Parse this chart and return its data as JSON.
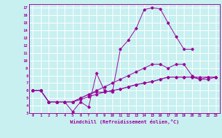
{
  "xlabel": "Windchill (Refroidissement éolien,°C)",
  "bg_color": "#c8f0f0",
  "grid_color": "#ffffff",
  "line_color": "#990099",
  "xlim": [
    -0.5,
    23.5
  ],
  "ylim": [
    3,
    17.5
  ],
  "xticks": [
    0,
    1,
    2,
    3,
    4,
    5,
    6,
    7,
    8,
    9,
    10,
    11,
    12,
    13,
    14,
    15,
    16,
    17,
    18,
    19,
    20,
    21,
    22,
    23
  ],
  "yticks": [
    3,
    4,
    5,
    6,
    7,
    8,
    9,
    10,
    11,
    12,
    13,
    14,
    15,
    16,
    17
  ],
  "series": [
    [
      6.0,
      6.0,
      4.5,
      4.5,
      4.5,
      3.2,
      4.5,
      3.8,
      8.3,
      6.0,
      5.8,
      11.5,
      12.7,
      14.3,
      16.8,
      17.0,
      16.9,
      15.0,
      13.2,
      11.5,
      11.5,
      null,
      null,
      null
    ],
    [
      6.0,
      6.0,
      4.5,
      4.5,
      4.5,
      4.5,
      5.0,
      5.5,
      6.0,
      6.5,
      7.0,
      7.5,
      8.0,
      8.5,
      9.0,
      9.5,
      9.5,
      9.0,
      9.5,
      9.5,
      8.0,
      7.5,
      7.8,
      7.8
    ],
    [
      6.0,
      6.0,
      4.5,
      4.5,
      4.5,
      4.5,
      5.0,
      5.5,
      5.8,
      5.8,
      6.0,
      6.2,
      6.5,
      6.8,
      7.0,
      7.2,
      7.5,
      7.8,
      7.8,
      7.8,
      7.8,
      7.8,
      7.8,
      7.8
    ],
    [
      6.0,
      6.0,
      4.5,
      4.5,
      4.5,
      4.5,
      4.8,
      5.2,
      5.5,
      5.8,
      6.0,
      6.2,
      6.5,
      6.8,
      7.0,
      7.2,
      7.5,
      7.8,
      7.8,
      7.8,
      7.8,
      7.5,
      7.5,
      7.8
    ]
  ]
}
